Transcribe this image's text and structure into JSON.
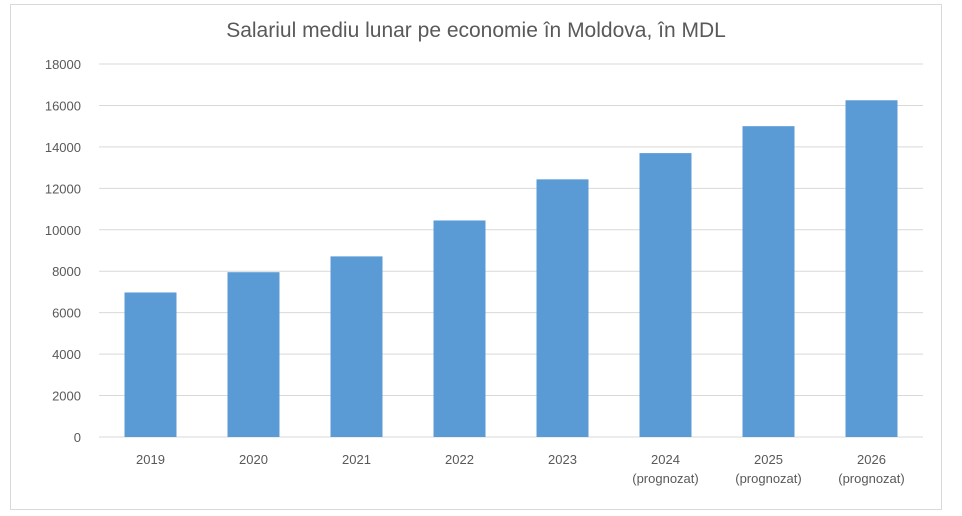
{
  "chart_data": {
    "type": "bar",
    "title": "Salariul mediu lunar pe economie în Moldova, în MDL",
    "xlabel": "",
    "ylabel": "",
    "categories": [
      [
        "2019"
      ],
      [
        "2020"
      ],
      [
        "2021"
      ],
      [
        "2022"
      ],
      [
        "2023"
      ],
      [
        "2024",
        "(prognozat)"
      ],
      [
        "2025",
        "(prognozat)"
      ],
      [
        "2026",
        "(prognozat)"
      ]
    ],
    "values": [
      6975,
      7953,
      8716,
      10449,
      12434,
      13700,
      15000,
      16250
    ],
    "ylim": [
      0,
      18000
    ],
    "yticks": [
      0,
      2000,
      4000,
      6000,
      8000,
      10000,
      12000,
      14000,
      16000,
      18000
    ],
    "grid": true,
    "legend": "none",
    "colors": {
      "bar": "#5b9bd5",
      "grid": "#d9d9d9",
      "text": "#595959"
    }
  }
}
